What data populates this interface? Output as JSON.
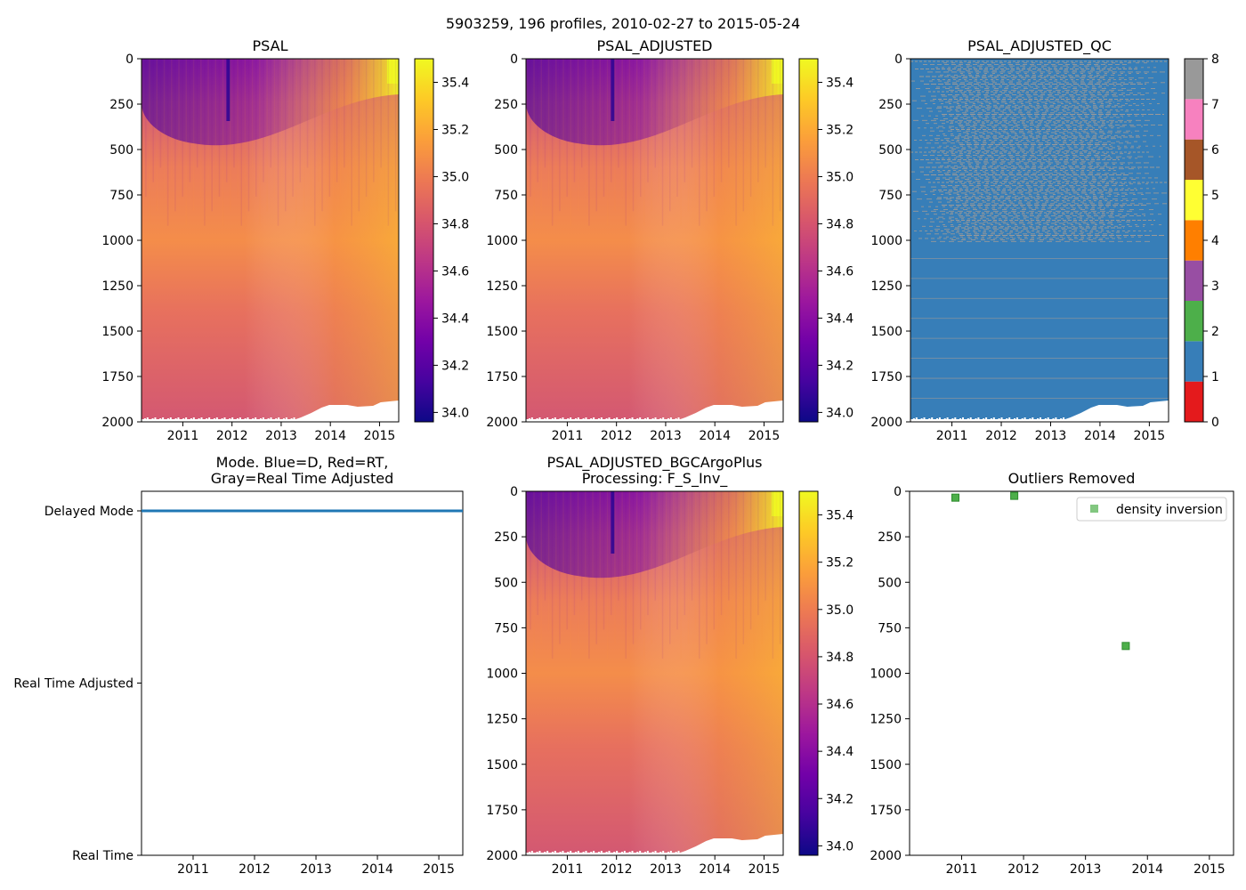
{
  "figure_title": "5903259, 196 profiles, 2010-02-27 to 2015-05-24",
  "colors": {
    "plasma": [
      "#0d0887",
      "#46039f",
      "#7201a8",
      "#9c179e",
      "#bd3786",
      "#d8576b",
      "#ed7953",
      "#fb9f3a",
      "#fdca26",
      "#f0f921"
    ],
    "qc": [
      "#e41a1c",
      "#377eb8",
      "#4daf4a",
      "#984ea3",
      "#ff7f00",
      "#ffff33",
      "#a65628",
      "#f781bf",
      "#999999"
    ],
    "mode_line": "#1f77b4",
    "outlier_marker": "#4daf4a"
  },
  "chart_data": [
    {
      "id": "psal",
      "type": "heatmap",
      "title": "PSAL",
      "x_ticks": [
        "2011",
        "2012",
        "2013",
        "2014",
        "2015"
      ],
      "y_ticks": [
        "0",
        "250",
        "500",
        "750",
        "1000",
        "1250",
        "1500",
        "1750",
        "2000"
      ],
      "ylim": [
        2000,
        0
      ],
      "xlim": [
        2010.16,
        2015.39
      ],
      "colorbar": {
        "min": 33.96,
        "max": 35.5,
        "ticks": [
          "34.0",
          "34.2",
          "34.4",
          "34.6",
          "34.8",
          "35.0",
          "35.2",
          "35.4"
        ]
      }
    },
    {
      "id": "psal_adjusted",
      "type": "heatmap",
      "title": "PSAL_ADJUSTED",
      "x_ticks": [
        "2011",
        "2012",
        "2013",
        "2014",
        "2015"
      ],
      "y_ticks": [
        "0",
        "250",
        "500",
        "750",
        "1000",
        "1250",
        "1500",
        "1750",
        "2000"
      ],
      "ylim": [
        2000,
        0
      ],
      "xlim": [
        2010.16,
        2015.39
      ],
      "colorbar": {
        "min": 33.96,
        "max": 35.5,
        "ticks": [
          "34.0",
          "34.2",
          "34.4",
          "34.6",
          "34.8",
          "35.0",
          "35.2",
          "35.4"
        ]
      }
    },
    {
      "id": "psal_adjusted_qc",
      "type": "heatmap",
      "title": "PSAL_ADJUSTED_QC",
      "x_ticks": [
        "2011",
        "2012",
        "2013",
        "2014",
        "2015"
      ],
      "y_ticks": [
        "0",
        "250",
        "500",
        "750",
        "1000",
        "1250",
        "1500",
        "1750",
        "2000"
      ],
      "ylim": [
        2000,
        0
      ],
      "xlim": [
        2010.16,
        2015.39
      ],
      "dominant_flag": 1,
      "secondary_flag": 8,
      "colorbar": {
        "min": 0,
        "max": 8,
        "ticks": [
          "0",
          "1",
          "2",
          "3",
          "4",
          "5",
          "6",
          "7",
          "8"
        ]
      }
    },
    {
      "id": "mode",
      "type": "line",
      "title": "Mode. Blue=D, Red=RT,",
      "title_line2": "Gray=Real Time Adjusted",
      "x_ticks": [
        "2011",
        "2012",
        "2013",
        "2014",
        "2015"
      ],
      "xlim": [
        2010.16,
        2015.39
      ],
      "y_categories": [
        "Delayed Mode",
        "Real Time Adjusted",
        "Real Time"
      ],
      "series": [
        {
          "name": "Delayed Mode",
          "x": [
            2010.16,
            2015.39
          ],
          "value": "Delayed Mode"
        }
      ]
    },
    {
      "id": "psal_bgc",
      "type": "heatmap",
      "title": "PSAL_ADJUSTED_BGCArgoPlus",
      "title_line2": "Processing: F_S_Inv_",
      "x_ticks": [
        "2011",
        "2012",
        "2013",
        "2014",
        "2015"
      ],
      "y_ticks": [
        "0",
        "250",
        "500",
        "750",
        "1000",
        "1250",
        "1500",
        "1750",
        "2000"
      ],
      "ylim": [
        2000,
        0
      ],
      "xlim": [
        2010.16,
        2015.39
      ],
      "colorbar": {
        "min": 33.96,
        "max": 35.5,
        "ticks": [
          "34.0",
          "34.2",
          "34.4",
          "34.6",
          "34.8",
          "35.0",
          "35.2",
          "35.4"
        ]
      }
    },
    {
      "id": "outliers",
      "type": "scatter",
      "title": "Outliers Removed",
      "x_ticks": [
        "2011",
        "2012",
        "2013",
        "2014",
        "2015"
      ],
      "y_ticks": [
        "0",
        "250",
        "500",
        "750",
        "1000",
        "1250",
        "1500",
        "1750",
        "2000"
      ],
      "ylim": [
        2000,
        0
      ],
      "xlim": [
        2010.16,
        2015.39
      ],
      "legend": "density inversion",
      "series": [
        {
          "name": "density inversion",
          "points": [
            [
              2010.9,
              35
            ],
            [
              2011.85,
              25
            ],
            [
              2013.65,
              850
            ]
          ]
        }
      ]
    }
  ]
}
